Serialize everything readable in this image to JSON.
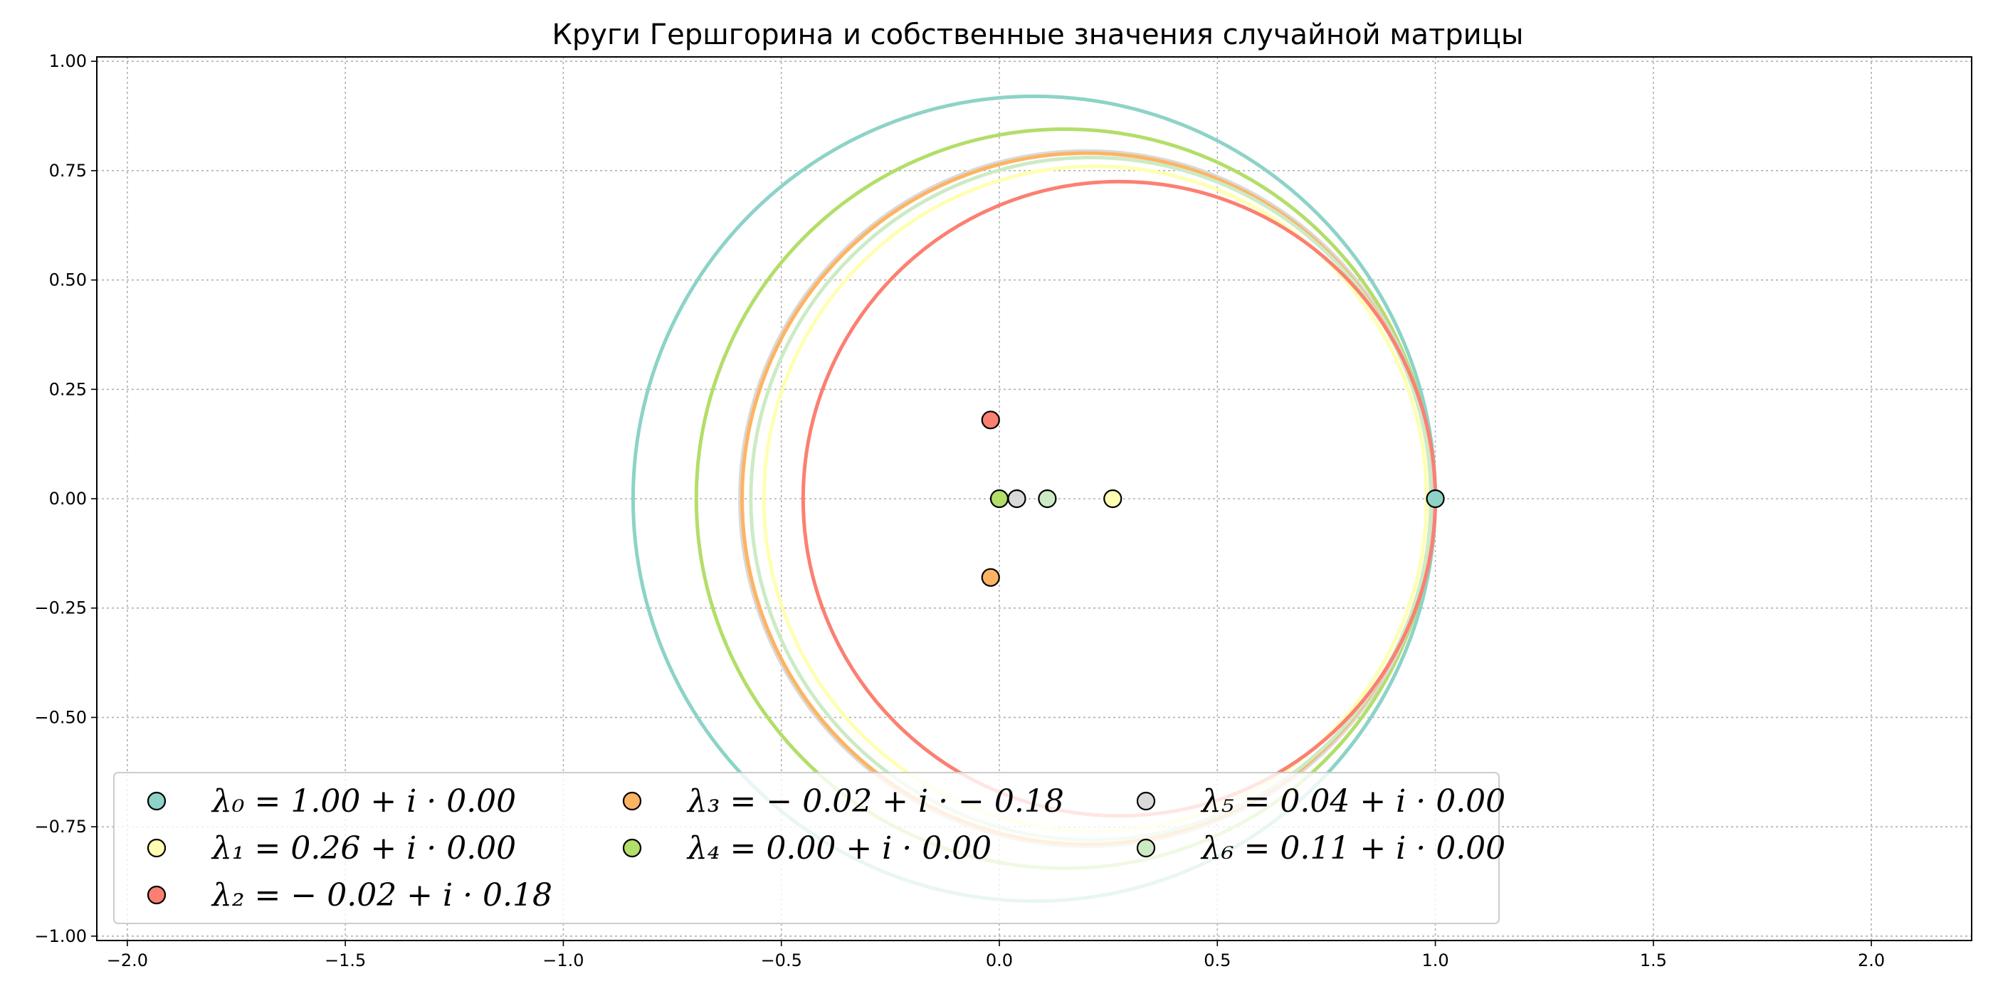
{
  "chart_data": {
    "type": "scatter",
    "title": "Круги Гершгорина и собственные значения случайной матрицы",
    "xlabel": "",
    "ylabel": "",
    "xlim": [
      -2.07,
      2.23
    ],
    "ylim": [
      -1.01,
      1.01
    ],
    "x_ticks": [
      -2.0,
      -1.5,
      -1.0,
      -0.5,
      0.0,
      0.5,
      1.0,
      1.5,
      2.0
    ],
    "x_tick_labels": [
      "−2.0",
      "−1.5",
      "−1.0",
      "−0.5",
      "0.0",
      "0.5",
      "1.0",
      "1.5",
      "2.0"
    ],
    "y_ticks": [
      1.0,
      0.75,
      0.5,
      0.25,
      0.0,
      -0.25,
      -0.5,
      -0.75,
      -1.0
    ],
    "y_tick_labels": [
      "1.00",
      "0.75",
      "0.50",
      "0.25",
      "0.00",
      "−0.25",
      "−0.50",
      "−0.75",
      "−1.00"
    ],
    "grid": true,
    "legend_position": "lower-left",
    "legend_columns": 3,
    "circles": [
      {
        "center": [
          0.08,
          0.0
        ],
        "radius": 0.92,
        "color": "#8dd3c7"
      },
      {
        "center": [
          0.15,
          0.0
        ],
        "radius": 0.845,
        "color": "#b3de69"
      },
      {
        "center": [
          0.2,
          0.0
        ],
        "radius": 0.795,
        "color": "#d9d9d9"
      },
      {
        "center": [
          0.2,
          0.0
        ],
        "radius": 0.79,
        "color": "#fdb462"
      },
      {
        "center": [
          0.21,
          0.0
        ],
        "radius": 0.78,
        "color": "#ccebc5"
      },
      {
        "center": [
          0.22,
          0.0
        ],
        "radius": 0.76,
        "color": "#ffffb3"
      },
      {
        "center": [
          0.275,
          0.0
        ],
        "radius": 0.725,
        "color": "#fb8072"
      }
    ],
    "eigenvalues": [
      {
        "re": 1.0,
        "im": 0.0,
        "color": "#8dd3c7",
        "label": "λ₀ = 1.00 + i · 0.00"
      },
      {
        "re": 0.26,
        "im": 0.0,
        "color": "#ffffb3",
        "label": "λ₁ = 0.26 + i · 0.00"
      },
      {
        "re": -0.02,
        "im": 0.18,
        "color": "#fb8072",
        "label": "λ₂ = − 0.02 + i · 0.18"
      },
      {
        "re": -0.02,
        "im": -0.18,
        "color": "#fdb462",
        "label": "λ₃ = − 0.02 + i · − 0.18"
      },
      {
        "re": 0.0,
        "im": 0.0,
        "color": "#b3de69",
        "label": "λ₄ = 0.00 + i · 0.00"
      },
      {
        "re": 0.04,
        "im": 0.0,
        "color": "#d9d9d9",
        "label": "λ₅ = 0.04 + i · 0.00"
      },
      {
        "re": 0.11,
        "im": 0.0,
        "color": "#ccebc5",
        "label": "λ₆ = 0.11 + i · 0.00"
      }
    ]
  }
}
